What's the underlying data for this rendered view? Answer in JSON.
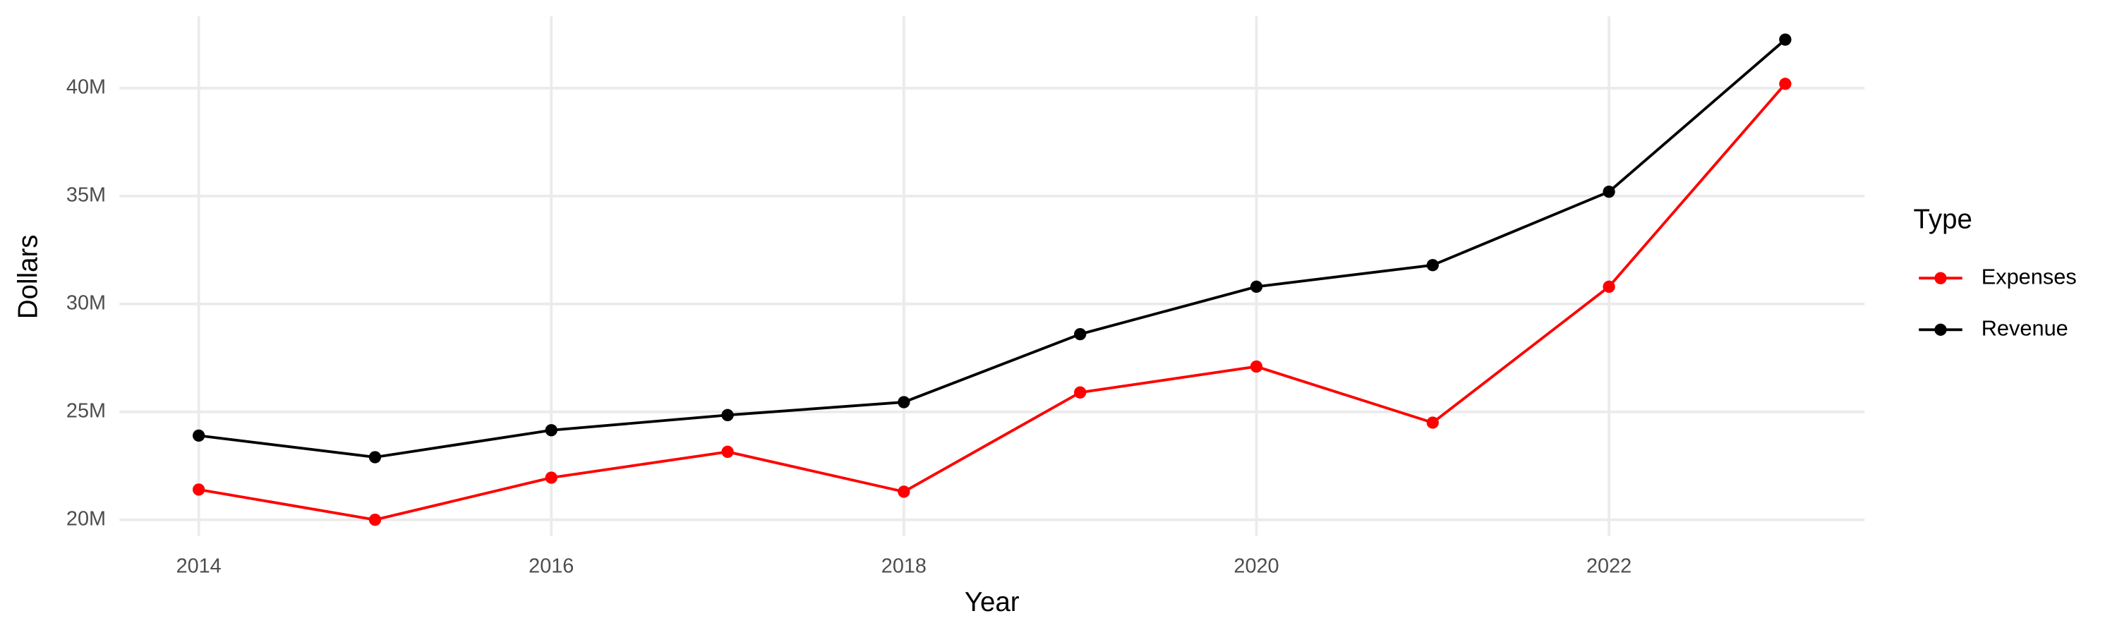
{
  "chart_data": {
    "type": "line",
    "x_label": "Year",
    "y_label": "Dollars",
    "x": [
      2014,
      2015,
      2016,
      2017,
      2018,
      2019,
      2020,
      2021,
      2022,
      2023
    ],
    "series": [
      {
        "name": "Expenses",
        "color": "#ff0000",
        "values": [
          21400000,
          20000000,
          21950000,
          23150000,
          21300000,
          25900000,
          27100000,
          24500000,
          30800000,
          40200000
        ]
      },
      {
        "name": "Revenue",
        "color": "#000000",
        "values": [
          23900000,
          22900000,
          24150000,
          24850000,
          25450000,
          28600000,
          30800000,
          31800000,
          35200000,
          42250000
        ]
      }
    ],
    "xlim": [
      2013.55,
      2023.45
    ],
    "ylim": [
      19250000,
      43330000
    ],
    "xticks": [
      2014,
      2016,
      2018,
      2020,
      2022
    ],
    "yticks": [
      {
        "value": 20000000,
        "label": "20M"
      },
      {
        "value": 25000000,
        "label": "25M"
      },
      {
        "value": 30000000,
        "label": "30M"
      },
      {
        "value": 35000000,
        "label": "35M"
      },
      {
        "value": 40000000,
        "label": "40M"
      }
    ],
    "grid": true,
    "legend_title": "Type",
    "legend_position": "right"
  }
}
